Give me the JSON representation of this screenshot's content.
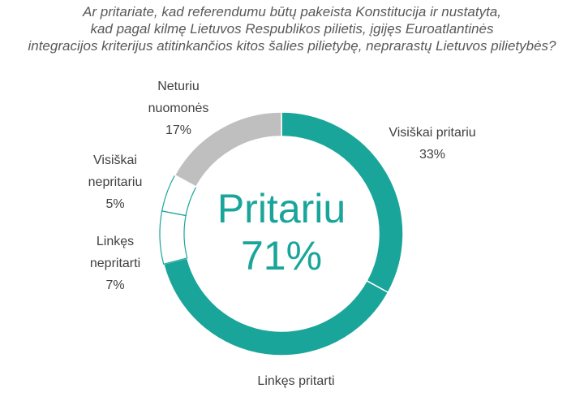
{
  "title_lines": [
    "Ar pritariate, kad referendumu būtų pakeista Konstitucija ir nustatyta,",
    "kad pagal kilmę Lietuvos Respublikos pilietis, įgijęs Euroatlantinės",
    "integracijos kriterijus atitinkančios kitos šalies pilietybę, neprarastų Lietuvos pilietybės?"
  ],
  "center": {
    "label": "Pritariu",
    "value": "71%"
  },
  "labels": {
    "visiskai_pritariu": {
      "name": "Visiškai pritariu",
      "value": "33%"
    },
    "linkes_pritarti": {
      "name": "Linkęs pritarti"
    },
    "linkes_nepritarti": {
      "name_lines": [
        "Linkęs",
        "nepritarti"
      ],
      "value": "7%"
    },
    "visiskai_nepritariu": {
      "name_lines": [
        "Visiškai",
        "nepritariu"
      ],
      "value": "5%"
    },
    "neturiu_nuomones": {
      "name_lines": [
        "Neturiu",
        "nuomonės"
      ],
      "value": "17%"
    }
  },
  "chart_data": {
    "type": "pie",
    "donut": true,
    "title": "Ar pritariate, kad referendumu būtų pakeista Konstitucija ir nustatyta, kad pagal kilmę Lietuvos Respublikos pilietis, įgijęs Euroatlantinės integracijos kriterijus atitinkančios kitos šalies pilietybę, neprarastų Lietuvos pilietybės?",
    "center_text": "Pritariu 71%",
    "categories": [
      "Visiškai pritariu",
      "Linkęs pritarti",
      "Linkęs nepritarti",
      "Visiškai nepritariu",
      "Neturiu nuomonės"
    ],
    "values": [
      33,
      38,
      7,
      5,
      17
    ],
    "colors": [
      "#1aa59a",
      "#1aa59a",
      "#ffffff",
      "#ffffff",
      "#bfbfbf"
    ],
    "slice_outline": "#1aa59a",
    "legend": "none"
  }
}
